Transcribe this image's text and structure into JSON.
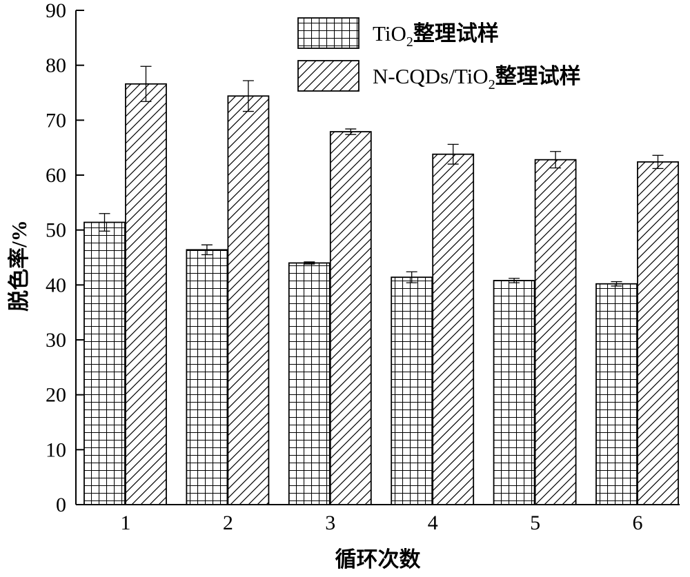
{
  "chart_data": {
    "type": "bar",
    "title": "",
    "xlabel": "循环次数",
    "ylabel": "脱色率/%",
    "categories": [
      "1",
      "2",
      "3",
      "4",
      "5",
      "6"
    ],
    "ylim": [
      0,
      90
    ],
    "yticks": [
      0,
      10,
      20,
      30,
      40,
      50,
      60,
      70,
      80,
      90
    ],
    "legend_position": "top-right",
    "grid": false,
    "series": [
      {
        "name": "TiO₂整理试样",
        "name_parts": [
          "TiO",
          "2",
          "整理试样"
        ],
        "pattern": "grid-hatch",
        "values": [
          51.4,
          46.4,
          44.0,
          41.4,
          40.8,
          40.2
        ],
        "errors": [
          1.6,
          0.9,
          0.2,
          1.0,
          0.4,
          0.4
        ]
      },
      {
        "name": "N-CQDs/TiO₂整理试样",
        "name_parts": [
          "N-CQDs/TiO",
          "2",
          "整理试样"
        ],
        "pattern": "diagonal-hatch",
        "values": [
          76.6,
          74.4,
          67.9,
          63.8,
          62.8,
          62.4
        ],
        "errors": [
          3.2,
          2.8,
          0.5,
          1.8,
          1.5,
          1.2
        ]
      }
    ]
  },
  "colors": {
    "bar_fill": "#ffffff",
    "stroke": "#000000",
    "background": "#ffffff"
  }
}
